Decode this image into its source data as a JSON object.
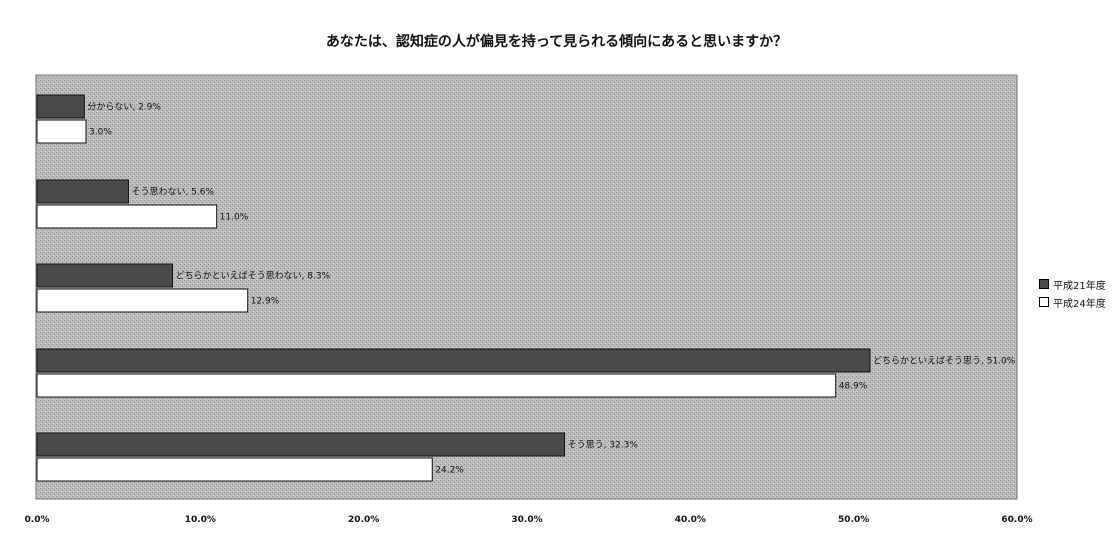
{
  "chart_data": {
    "type": "bar",
    "orientation": "horizontal",
    "title": "あなたは、認知症の人が偏見を持って見られる傾向にあると思いますか？",
    "categories": [
      "分からない",
      "そう思わない",
      "どちらかといえばそう思わない",
      "どちらかといえばそう思う",
      "そう思う"
    ],
    "series": [
      {
        "name": "平成21年度",
        "values": [
          2.9,
          5.6,
          8.3,
          51.0,
          32.3
        ],
        "color": "#4a4a4a",
        "labels": [
          "分からない, 2.9%",
          "そう思わない, 5.6%",
          "どちらかといえばそう思わない, 8.3%",
          "どちらかといえばそう思う, 51.0%",
          "そう思う, 32.3%"
        ]
      },
      {
        "name": "平成24年度",
        "values": [
          3.0,
          11.0,
          12.9,
          48.9,
          24.2
        ],
        "color": "#ffffff",
        "labels": [
          "3.0%",
          "11.0%",
          "12.9%",
          "48.9%",
          "24.2%"
        ]
      }
    ],
    "xlim": [
      0,
      60
    ],
    "xticks": [
      "0.0%",
      "10.0%",
      "20.0%",
      "30.0%",
      "40.0%",
      "50.0%",
      "60.0%"
    ],
    "xlabel": "",
    "ylabel": "",
    "grid": false,
    "legend_position": "right",
    "plot_background": "#b3b3b3"
  }
}
